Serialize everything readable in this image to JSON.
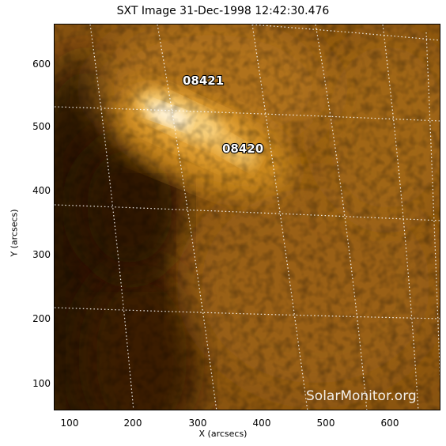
{
  "title": "SXT Image 31-Dec-1998 12:42:30.476",
  "x_axis": {
    "label": "X (arcsecs)",
    "ticks": [
      "100",
      "200",
      "300",
      "400",
      "500",
      "600"
    ]
  },
  "y_axis": {
    "label": "Y (arcsecs)",
    "ticks": [
      "100",
      "200",
      "300",
      "400",
      "500",
      "600"
    ]
  },
  "active_regions": [
    {
      "number": "08421"
    },
    {
      "number": "08420"
    }
  ],
  "watermark": "SolarMonitor.org",
  "colors": {
    "frame": "#000000",
    "grid": "#ffffff",
    "background": "#ffffff"
  }
}
